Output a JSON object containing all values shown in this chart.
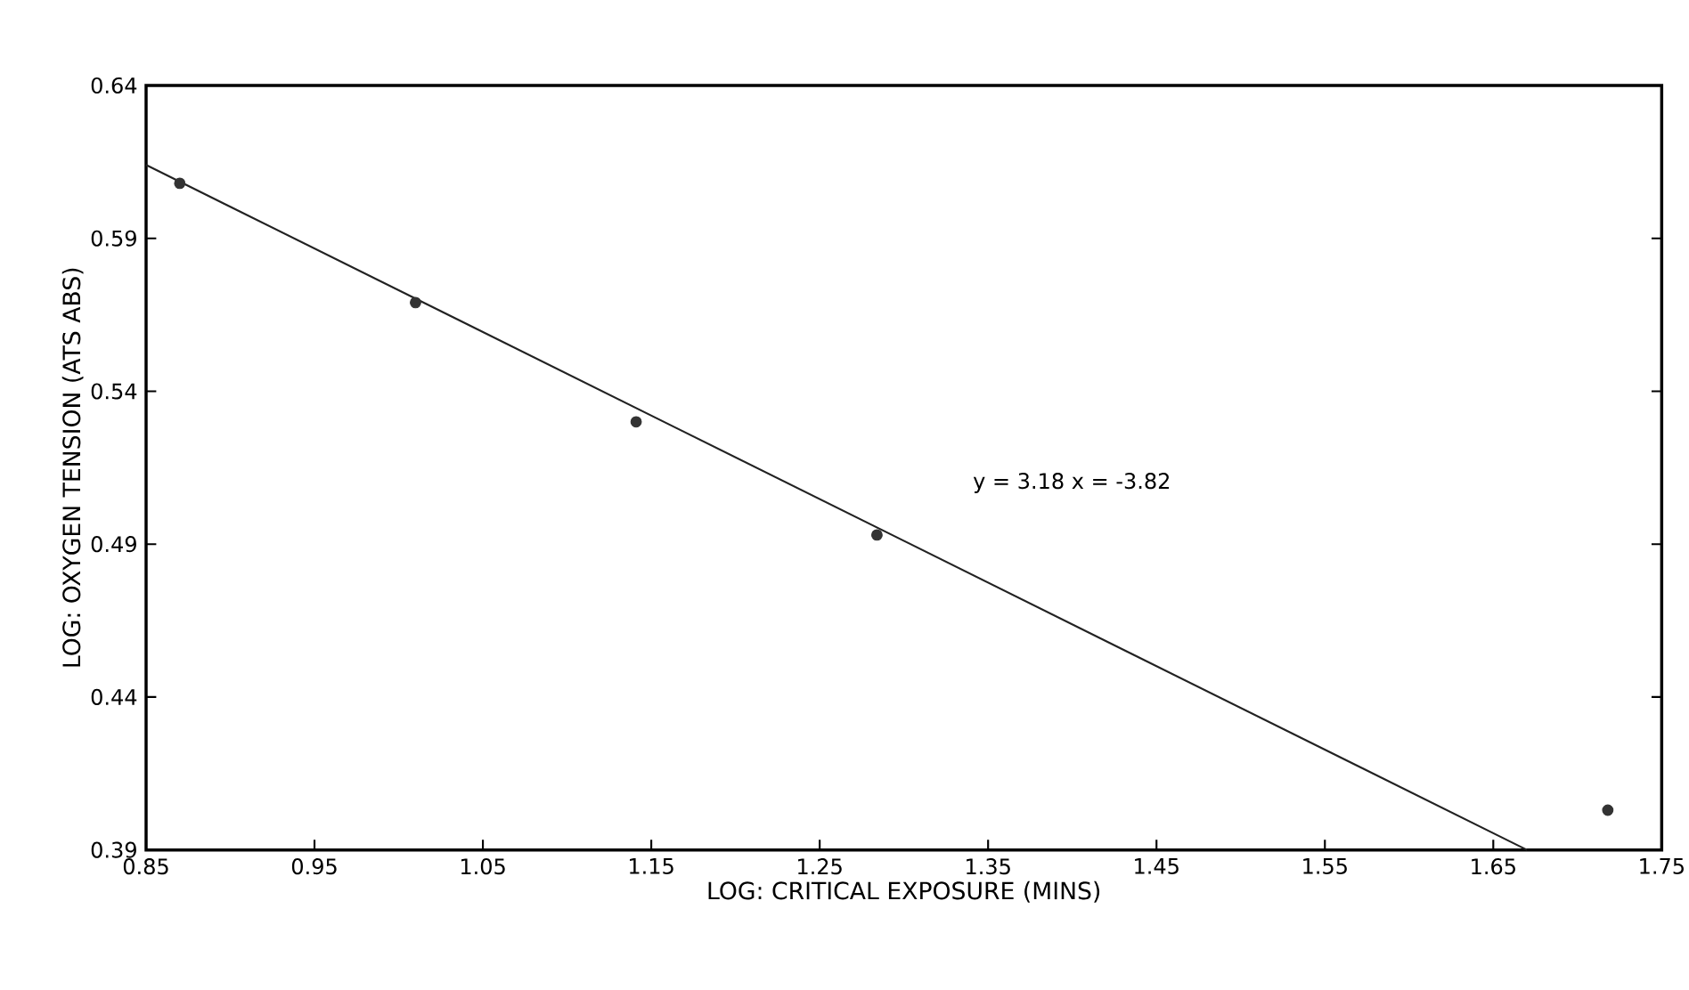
{
  "chart_data": {
    "type": "scatter",
    "xlabel": "LOG: CRITICAL EXPOSURE (MINS)",
    "ylabel": "LOG: OXYGEN TENSION (ATS ABS)",
    "series": [
      {
        "marker": "circle",
        "color": "#333333",
        "x": [
          0.87,
          1.01,
          1.141,
          1.284,
          1.718
        ],
        "values": [
          0.608,
          0.569,
          0.53,
          0.493,
          0.403
        ]
      },
      {
        "type": "line",
        "marker": "none",
        "color": "#222222",
        "x": [
          0.85,
          1.67
        ],
        "values": [
          0.614,
          0.39
        ]
      }
    ],
    "xlim": [
      0.85,
      1.75
    ],
    "xticks": [
      0.85,
      0.95,
      1.05,
      1.15,
      1.25,
      1.35,
      1.45,
      1.55,
      1.65,
      1.75
    ],
    "ylim": [
      0.39,
      0.64
    ],
    "yticks": [
      0.39,
      0.44,
      0.49,
      0.54,
      0.59,
      0.64
    ],
    "annotations": [
      "y = 3.18   x = -3.82"
    ]
  }
}
